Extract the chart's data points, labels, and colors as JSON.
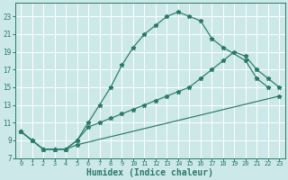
{
  "xlabel": "Humidex (Indice chaleur)",
  "bg_color": "#cce8e8",
  "grid_color": "#ffffff",
  "line_color": "#2a7a6a",
  "xlim": [
    -0.5,
    23.5
  ],
  "ylim": [
    7,
    24.5
  ],
  "xticks": [
    0,
    1,
    2,
    3,
    4,
    5,
    6,
    7,
    8,
    9,
    10,
    11,
    12,
    13,
    14,
    15,
    16,
    17,
    18,
    19,
    20,
    21,
    22,
    23
  ],
  "yticks": [
    7,
    9,
    11,
    13,
    15,
    17,
    19,
    21,
    23
  ],
  "line1_x": [
    0,
    1,
    2,
    3,
    4,
    5,
    23
  ],
  "line1_y": [
    10,
    9,
    8,
    8,
    8,
    8.5,
    14
  ],
  "line2_x": [
    0,
    1,
    2,
    3,
    4,
    5,
    6,
    7,
    8,
    9,
    10,
    11,
    12,
    13,
    14,
    15,
    16,
    17,
    18,
    20,
    21,
    22
  ],
  "line2_y": [
    10,
    9,
    8,
    8,
    8,
    9,
    11,
    13,
    15,
    17.5,
    19.5,
    21,
    22,
    23,
    23.5,
    23,
    22.5,
    20.5,
    19.5,
    18,
    16,
    15
  ],
  "line3_x": [
    0,
    1,
    2,
    3,
    4,
    5,
    6,
    7,
    8,
    9,
    10,
    11,
    12,
    13,
    14,
    15,
    16,
    17,
    18,
    19,
    20,
    21,
    22,
    23
  ],
  "line3_y": [
    10,
    9,
    8,
    8,
    8,
    9,
    10.5,
    11,
    11.5,
    12,
    12.5,
    13,
    13.5,
    14,
    14.5,
    15,
    16,
    17,
    18,
    19,
    18.5,
    17,
    16,
    15
  ],
  "xtick_fontsize": 5.0,
  "ytick_fontsize": 5.5,
  "xlabel_fontsize": 7.0
}
